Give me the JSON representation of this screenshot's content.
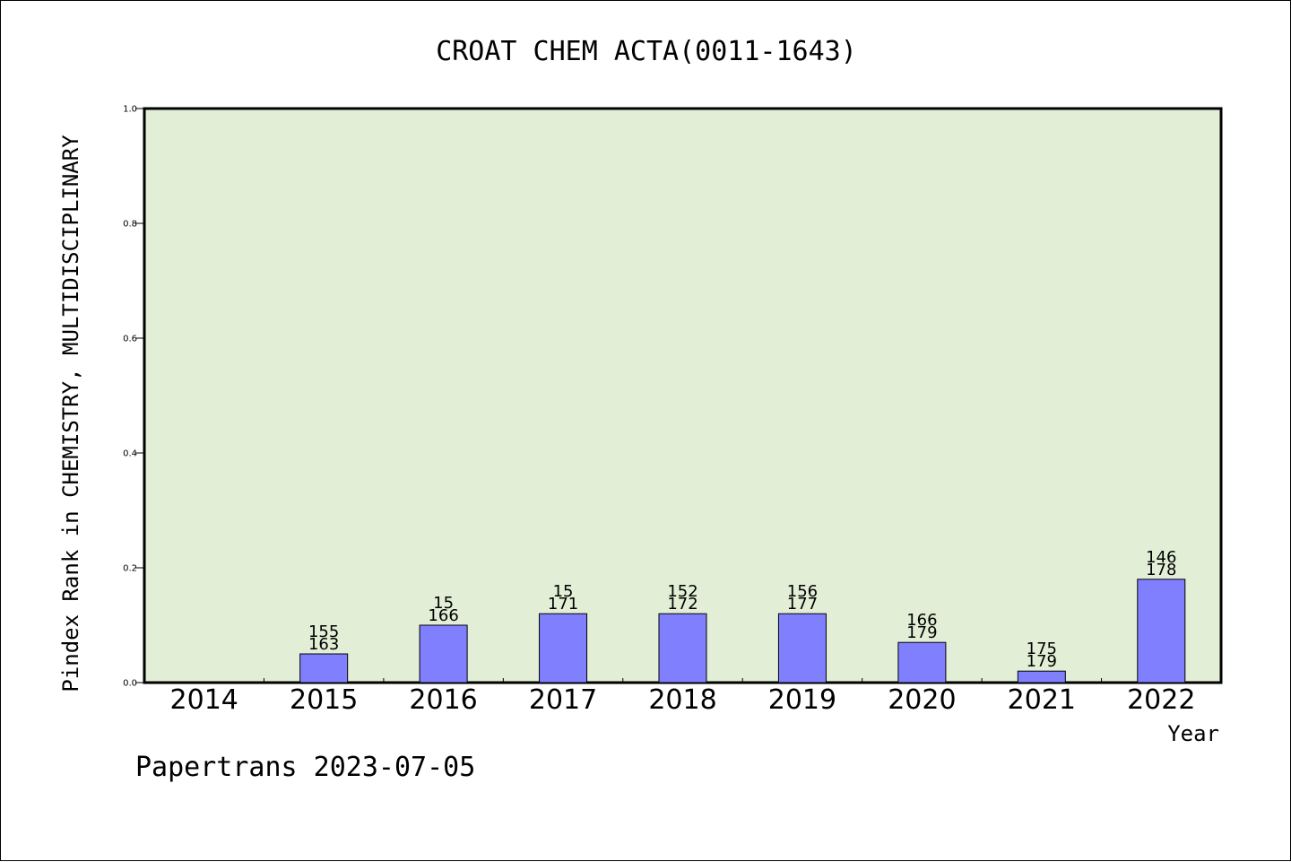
{
  "colors": {
    "plot_background": "#e2efd6",
    "bar_fill": "#8080ff",
    "bar_stroke": "#000000",
    "axis": "#000000",
    "page_background": "#ffffff"
  },
  "footer": {
    "text": "Papertrans 2023-07-05"
  },
  "chart_data": {
    "type": "bar",
    "title": "CROAT CHEM ACTA(0011-1643)",
    "xlabel": "Year",
    "ylabel": "Pindex Rank in CHEMISTRY, MULTIDISCIPLINARY",
    "ylim": [
      0,
      1.0
    ],
    "yticks": [
      "0.0",
      "0.2",
      "0.4",
      "0.6",
      "0.8",
      "1.0"
    ],
    "categories": [
      "2014",
      "2015",
      "2016",
      "2017",
      "2018",
      "2019",
      "2020",
      "2021",
      "2022"
    ],
    "values": [
      null,
      0.05,
      0.1,
      0.12,
      0.12,
      0.12,
      0.07,
      0.02,
      0.18
    ],
    "rank_labels": [
      "",
      "155",
      "15",
      "15",
      "152",
      "156",
      "166",
      "175",
      "146"
    ],
    "total_labels": [
      "",
      "163",
      "166",
      "171",
      "172",
      "177",
      "179",
      "179",
      "178"
    ],
    "grid": false,
    "legend": "none"
  }
}
